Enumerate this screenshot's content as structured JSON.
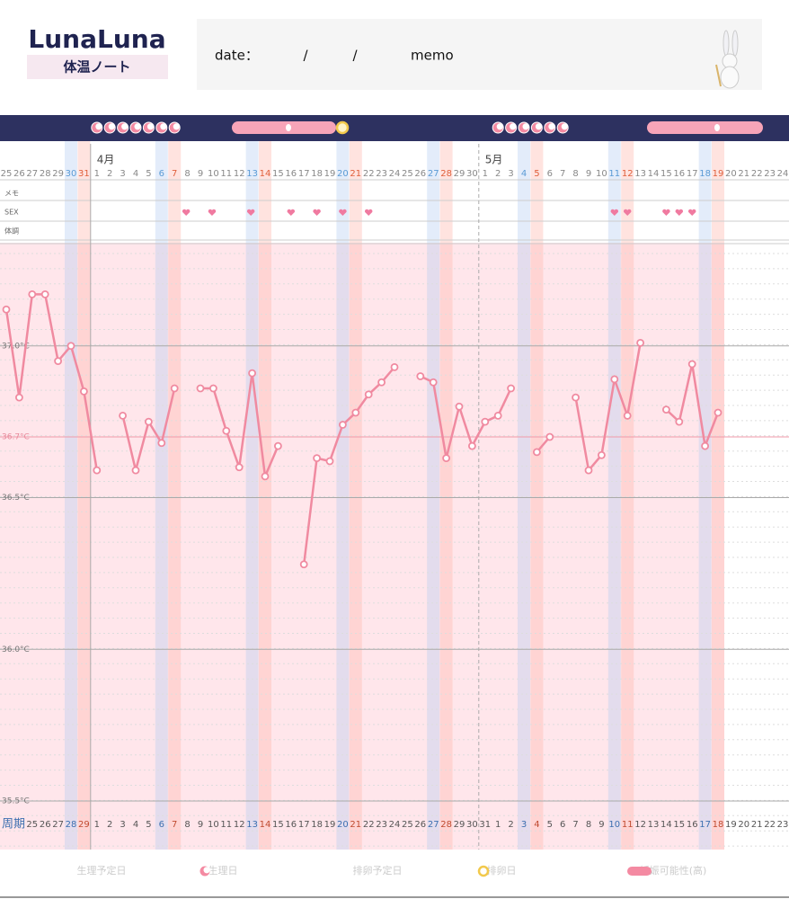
{
  "header": {
    "logo": "LunaLuna",
    "subtitle": "体温ノート",
    "date_label": "date：",
    "date_separators": [
      "/",
      "/"
    ],
    "memo_label": "memo"
  },
  "chart_data": {
    "type": "line",
    "month_labels": [
      "4月",
      "5月"
    ],
    "categories": [
      "25",
      "26",
      "27",
      "28",
      "29",
      "30",
      "31",
      "1",
      "2",
      "3",
      "4",
      "5",
      "6",
      "7",
      "8",
      "9",
      "10",
      "11",
      "12",
      "13",
      "14",
      "15",
      "16",
      "17",
      "18",
      "19",
      "20",
      "21",
      "22",
      "23",
      "24",
      "25",
      "26",
      "27",
      "28",
      "29",
      "30",
      "1",
      "2",
      "3",
      "4",
      "5",
      "6",
      "7",
      "8",
      "9",
      "10",
      "11",
      "12",
      "13",
      "14",
      "15",
      "16",
      "17",
      "18",
      "19",
      "20",
      "21",
      "22",
      "23",
      "24"
    ],
    "row_labels": [
      "メモ",
      "SEX",
      "体調"
    ],
    "cycle_label": "周期",
    "cycle_days": [
      null,
      null,
      "25",
      "26",
      "27",
      "28",
      "29",
      "1",
      "2",
      "3",
      "4",
      "5",
      "6",
      "7",
      "8",
      "9",
      "10",
      "11",
      "12",
      "13",
      "14",
      "15",
      "16",
      "17",
      "18",
      "19",
      "20",
      "21",
      "22",
      "23",
      "24",
      "25",
      "26",
      "27",
      "28",
      "29",
      "30",
      "31",
      "1",
      "2",
      "3",
      "4",
      "5",
      "6",
      "7",
      "8",
      "9",
      "10",
      "11",
      "12",
      "13",
      "14",
      "15",
      "16",
      "17",
      "18",
      "19",
      "20",
      "21",
      "22",
      "23"
    ],
    "color": "#f08aa0",
    "values": [
      37.12,
      36.83,
      37.17,
      37.17,
      36.95,
      37.0,
      36.85,
      36.59,
      null,
      36.77,
      36.59,
      36.75,
      36.68,
      36.86,
      null,
      36.86,
      36.86,
      36.72,
      36.6,
      36.91,
      36.57,
      36.67,
      null,
      36.28,
      36.63,
      36.62,
      36.74,
      36.78,
      36.84,
      36.88,
      36.93,
      null,
      36.9,
      36.88,
      36.63,
      36.8,
      36.67,
      36.75,
      36.77,
      36.86,
      null,
      36.65,
      36.7,
      null,
      36.83,
      36.59,
      36.64,
      36.89,
      36.77,
      37.01,
      null,
      36.79,
      36.75,
      36.94,
      36.67,
      36.78,
      null,
      null,
      null,
      null,
      null
    ],
    "ylim": [
      35.34,
      37.34
    ],
    "yticks": [
      {
        "value": 37.0,
        "label": "37.0°C"
      },
      {
        "value": 36.7,
        "label": "36.7°C"
      },
      {
        "value": 36.5,
        "label": "36.5°C"
      },
      {
        "value": 36.0,
        "label": "36.0°C"
      },
      {
        "value": 35.5,
        "label": "35.5°C"
      }
    ],
    "grid": true,
    "legend": [
      "生理予定日",
      "生理日",
      "排卵予定日",
      "排卵日",
      "妊娠可能性(高)"
    ]
  }
}
